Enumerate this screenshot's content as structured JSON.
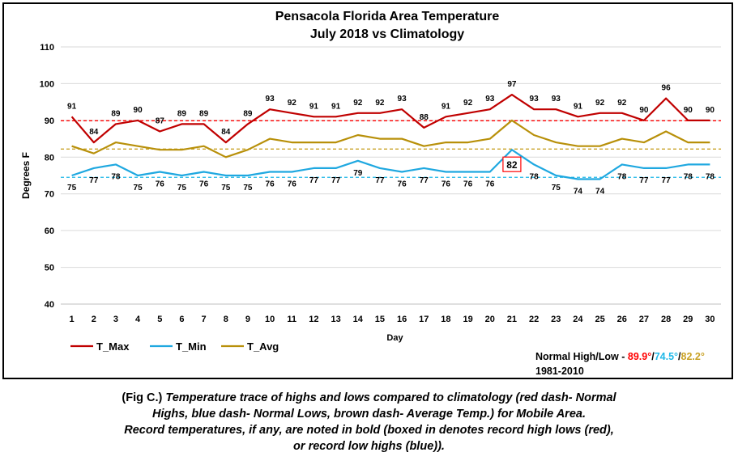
{
  "chart_data": {
    "type": "line",
    "title": "Pensacola Florida Area Temperature",
    "subtitle": "July 2018 vs Climatology",
    "xlabel": "Day",
    "ylabel": "Degrees F",
    "ylim": [
      40,
      110
    ],
    "yticks": [
      40,
      50,
      60,
      70,
      80,
      90,
      100,
      110
    ],
    "x": [
      1,
      2,
      3,
      4,
      5,
      6,
      7,
      8,
      9,
      10,
      11,
      12,
      13,
      14,
      15,
      16,
      17,
      18,
      19,
      20,
      21,
      22,
      23,
      24,
      25,
      26,
      27,
      28,
      29,
      30
    ],
    "grid": "horizontal",
    "legend_position": "bottom-left",
    "series": [
      {
        "name": "T_Max",
        "color": "#c00000",
        "values": [
          91,
          84,
          89,
          90,
          87,
          89,
          89,
          84,
          89,
          93,
          92,
          91,
          91,
          92,
          92,
          93,
          88,
          91,
          92,
          93,
          97,
          93,
          93,
          91,
          92,
          92,
          90,
          96,
          90,
          90
        ]
      },
      {
        "name": "T_Min",
        "color": "#1fa8e0",
        "values": [
          75,
          77,
          78,
          75,
          76,
          75,
          76,
          75,
          75,
          76,
          76,
          77,
          77,
          79,
          77,
          76,
          77,
          76,
          76,
          76,
          82,
          78,
          75,
          74,
          74,
          78,
          77,
          77,
          78,
          78
        ]
      },
      {
        "name": "T_Avg",
        "color": "#b8900a",
        "values": [
          83,
          81,
          84,
          83,
          82,
          82,
          83,
          80,
          82,
          85,
          84,
          84,
          84,
          86,
          85,
          85,
          83,
          84,
          84,
          85,
          90,
          86,
          84,
          83,
          83,
          85,
          84,
          87,
          84,
          84
        ]
      }
    ],
    "normals": [
      {
        "value": 89.9,
        "label": "89.9°",
        "color": "#ff0000"
      },
      {
        "value": 74.5,
        "label": "74.5°",
        "color": "#1fb8e8"
      },
      {
        "value": 82.2,
        "label": "82.2°",
        "color": "#c9a227"
      }
    ],
    "normals_label": "Normal High/Low - ",
    "normals_period": "1981-2010",
    "record_boxed_day": 21,
    "record_boxed_series": "T_Min",
    "record_box_color": "#ff0000"
  },
  "caption": {
    "line1_label": "(Fig C.)",
    "line1_text": " Temperature trace of highs and lows compared to climatology (red dash- Normal",
    "line2": "Highs, blue dash- Normal Lows, brown dash- Average Temp.) for Mobile Area.",
    "line3": "Record temperatures, if any, are noted in bold (boxed in denotes record high lows (red),",
    "line4": "or record low highs (blue))."
  }
}
